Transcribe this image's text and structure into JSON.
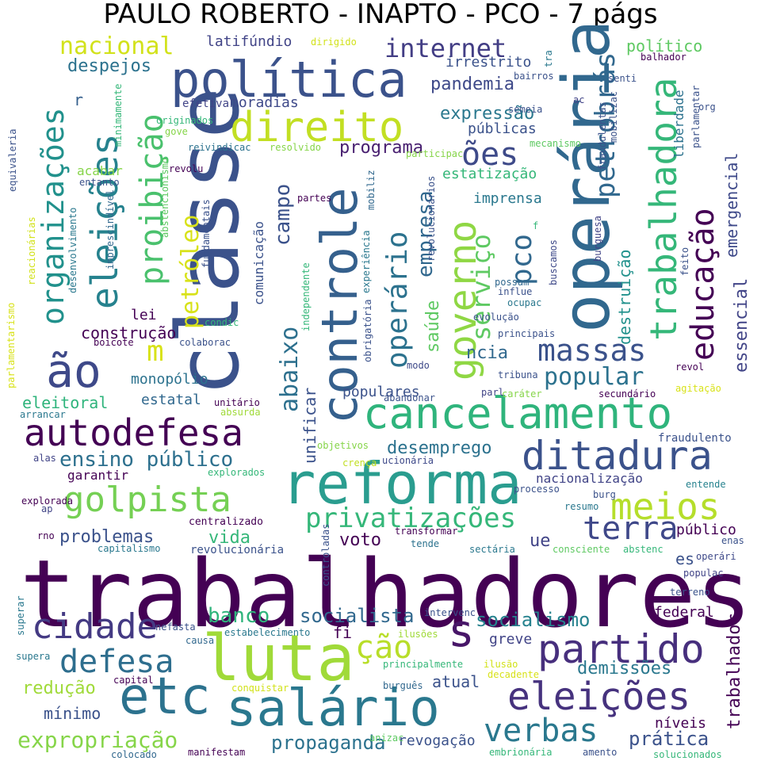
{
  "title": "PAULO ROBERTO - INAPTO - PCO - 7 págs",
  "words": [
    {
      "text": "trabalhadores",
      "color": "#440154"
    },
    {
      "text": "classe",
      "color": "#3b528b"
    },
    {
      "text": "luta",
      "color": "#a0da39"
    },
    {
      "text": "reforma",
      "color": "#2a9d8f"
    },
    {
      "text": "operária",
      "color": "#31688e"
    },
    {
      "text": "controle",
      "color": "#35608d"
    },
    {
      "text": "política",
      "color": "#3b528b"
    },
    {
      "text": "direito",
      "color": "#c2df23"
    },
    {
      "text": "etc",
      "color": "#2c728e"
    },
    {
      "text": "salário",
      "color": "#2a788e"
    },
    {
      "text": "cancelamento",
      "color": "#2fb47c"
    },
    {
      "text": "autodefesa",
      "color": "#440154"
    },
    {
      "text": "ditadura",
      "color": "#3b528b"
    },
    {
      "text": "governo",
      "color": "#8fd744"
    },
    {
      "text": "partido",
      "color": "#472f7d"
    },
    {
      "text": "golpista",
      "color": "#75d054"
    },
    {
      "text": "meios",
      "color": "#b5de2b"
    },
    {
      "text": "ão",
      "color": "#3e4989"
    },
    {
      "text": "s",
      "color": "#481668"
    },
    {
      "text": "eleições",
      "color": "#46327e"
    },
    {
      "text": "eleições",
      "color": "#26828e"
    },
    {
      "text": "organizações",
      "color": "#21918c"
    },
    {
      "text": "proibição",
      "color": "#4ac16d"
    },
    {
      "text": "trabalhadora",
      "color": "#35b779"
    },
    {
      "text": "educação",
      "color": "#440154"
    },
    {
      "text": "cidade",
      "color": "#443a83"
    },
    {
      "text": "defesa",
      "color": "#2e6e8e"
    },
    {
      "text": "verbas",
      "color": "#2a788e"
    },
    {
      "text": "terra",
      "color": "#3f4889"
    },
    {
      "text": "massas",
      "color": "#3b528b"
    },
    {
      "text": "privatizações",
      "color": "#35b779"
    },
    {
      "text": "ões",
      "color": "#3e4a89"
    },
    {
      "text": "operário",
      "color": "#2c728e"
    },
    {
      "text": "pco",
      "color": "#31688e"
    },
    {
      "text": "serviço",
      "color": "#5ec962"
    },
    {
      "text": "petrobrás",
      "color": "#31688e"
    },
    {
      "text": "internet",
      "color": "#433e85"
    },
    {
      "text": "nacional",
      "color": "#d2e21b"
    },
    {
      "text": "ção",
      "color": "#b8de29"
    },
    {
      "text": "abaixo",
      "color": "#2d708e"
    },
    {
      "text": "petróleo",
      "color": "#d8e219"
    },
    {
      "text": "m",
      "color": "#d8e219"
    },
    {
      "text": "campo",
      "color": "#3b528b"
    },
    {
      "text": "empresa",
      "color": "#31688e"
    },
    {
      "text": "popular",
      "color": "#2c728e"
    },
    {
      "text": "ensino público",
      "color": "#2d708e"
    },
    {
      "text": "problemas",
      "color": "#3b528b"
    },
    {
      "text": "expropriação",
      "color": "#86d549"
    },
    {
      "text": "banco",
      "color": "#2fb47c"
    },
    {
      "text": "socialista",
      "color": "#31688e"
    },
    {
      "text": "socialismo",
      "color": "#26828e"
    },
    {
      "text": "demissões",
      "color": "#2a788e"
    },
    {
      "text": "propaganda",
      "color": "#2c728e"
    },
    {
      "text": "prática",
      "color": "#3b528b"
    },
    {
      "text": "redução",
      "color": "#a0da39"
    },
    {
      "text": "mínimo",
      "color": "#3b528b"
    },
    {
      "text": "trabalhador",
      "color": "#440154"
    },
    {
      "text": "essencial",
      "color": "#414487"
    },
    {
      "text": "emergencial",
      "color": "#3e4989"
    },
    {
      "text": "destruição",
      "color": "#21918c"
    },
    {
      "text": "saúde",
      "color": "#5ec962"
    },
    {
      "text": "programa",
      "color": "#481f70"
    },
    {
      "text": "expressão",
      "color": "#2a788e"
    },
    {
      "text": "públicas",
      "color": "#3b528b"
    },
    {
      "text": "estatização",
      "color": "#35b779"
    },
    {
      "text": "pandemia",
      "color": "#3e4989"
    },
    {
      "text": "irrestrito",
      "color": "#3b528b"
    },
    {
      "text": "despejos",
      "color": "#2c728e"
    },
    {
      "text": "latifúndio",
      "color": "#414487"
    },
    {
      "text": "político",
      "color": "#5ec962"
    },
    {
      "text": "liberdade",
      "color": "#2c728e"
    },
    {
      "text": "moradias",
      "color": "#3e4989"
    },
    {
      "text": "lei",
      "color": "#440154"
    },
    {
      "text": "construção",
      "color": "#440154"
    },
    {
      "text": "monopólio",
      "color": "#2c728e"
    },
    {
      "text": "eleitoral",
      "color": "#2fb47c"
    },
    {
      "text": "estatal",
      "color": "#31688e"
    },
    {
      "text": "unificar",
      "color": "#3b528b"
    },
    {
      "text": "desemprego",
      "color": "#2c728e"
    },
    {
      "text": "vida",
      "color": "#35b779"
    },
    {
      "text": "voto",
      "color": "#440154"
    },
    {
      "text": "populares",
      "color": "#3b528b"
    },
    {
      "text": "nacionalização",
      "color": "#414487"
    },
    {
      "text": "federal",
      "color": "#440154"
    },
    {
      "text": "greve",
      "color": "#414487"
    },
    {
      "text": "atual",
      "color": "#3b528b"
    },
    {
      "text": "níveis",
      "color": "#440154"
    },
    {
      "text": "público",
      "color": "#440154"
    },
    {
      "text": "revogação",
      "color": "#3b528b"
    },
    {
      "text": "imprensa",
      "color": "#2a788e"
    },
    {
      "text": "ncia",
      "color": "#31688e"
    },
    {
      "text": "ue",
      "color": "#414487"
    },
    {
      "text": "fi",
      "color": "#440154"
    },
    {
      "text": "es",
      "color": "#3b528b"
    },
    {
      "text": "garantir",
      "color": "#440154"
    },
    {
      "text": "r",
      "color": "#35608d"
    },
    {
      "text": "acabar",
      "color": "#86d549"
    },
    {
      "text": "efetiva",
      "color": "#414487"
    },
    {
      "text": "comunicação",
      "color": "#3b528b"
    },
    {
      "text": "fraudulento",
      "color": "#3b528b"
    },
    {
      "text": "entende",
      "color": "#26828e"
    },
    {
      "text": "resumo",
      "color": "#2a788e"
    },
    {
      "text": "burg",
      "color": "#3b528b"
    },
    {
      "text": "processo",
      "color": "#3b528b"
    },
    {
      "text": "revolucionária",
      "color": "#3b528b"
    },
    {
      "text": "capitalismo",
      "color": "#2a788e"
    },
    {
      "text": "centralizado",
      "color": "#440154"
    },
    {
      "text": "transformar",
      "color": "#440154"
    },
    {
      "text": "tende",
      "color": "#2c728e"
    },
    {
      "text": "sectária",
      "color": "#2a788e"
    },
    {
      "text": "consciente",
      "color": "#5ec962"
    },
    {
      "text": "abstenc",
      "color": "#35b779"
    },
    {
      "text": "operári",
      "color": "#3e4989"
    },
    {
      "text": "populac",
      "color": "#414487"
    },
    {
      "text": "terreno",
      "color": "#3b528b"
    },
    {
      "text": "enas",
      "color": "#3b528b"
    },
    {
      "text": "intervenc",
      "color": "#3b528b"
    },
    {
      "text": "ilusões",
      "color": "#a0da39"
    },
    {
      "text": "estabelecimento",
      "color": "#2a788e"
    },
    {
      "text": "principalmente",
      "color": "#35b779"
    },
    {
      "text": "ilusão",
      "color": "#d2e21b"
    },
    {
      "text": "decadente",
      "color": "#d8e219"
    },
    {
      "text": "burguês",
      "color": "#31688e"
    },
    {
      "text": "conquistar",
      "color": "#d2e21b"
    },
    {
      "text": "capital",
      "color": "#440154"
    },
    {
      "text": "causa",
      "color": "#31688e"
    },
    {
      "text": "nefasta",
      "color": "#3b528b"
    },
    {
      "text": "superar",
      "color": "#2a788e"
    },
    {
      "text": "supera",
      "color": "#2a788e"
    },
    {
      "text": "colocado",
      "color": "#31688e"
    },
    {
      "text": "manifestam",
      "color": "#440154"
    },
    {
      "text": "anizac",
      "color": "#5ec962"
    },
    {
      "text": "embrionária",
      "color": "#35b779"
    },
    {
      "text": "amento",
      "color": "#3b528b"
    },
    {
      "text": "solucionados",
      "color": "#35b779"
    },
    {
      "text": "rno",
      "color": "#440154"
    },
    {
      "text": "ap",
      "color": "#414487"
    },
    {
      "text": "explorada",
      "color": "#440154"
    },
    {
      "text": "alas",
      "color": "#414487"
    },
    {
      "text": "arrancar",
      "color": "#2a788e"
    },
    {
      "text": "explorados",
      "color": "#35b779"
    },
    {
      "text": "crença",
      "color": "#c2df23"
    },
    {
      "text": "objetivos",
      "color": "#86d549"
    },
    {
      "text": "ucionária",
      "color": "#3e4989"
    },
    {
      "text": "absurda",
      "color": "#a0da39"
    },
    {
      "text": "unitário",
      "color": "#440154"
    },
    {
      "text": "abandonar",
      "color": "#3b528b"
    },
    {
      "text": "tribuna",
      "color": "#3b528b"
    },
    {
      "text": "caráter",
      "color": "#86d549"
    },
    {
      "text": "parl",
      "color": "#414487"
    },
    {
      "text": "secundário",
      "color": "#440154"
    },
    {
      "text": "agitação",
      "color": "#d8e219"
    },
    {
      "text": "revol",
      "color": "#440154"
    },
    {
      "text": "modo",
      "color": "#3e4989"
    },
    {
      "text": "colaborac",
      "color": "#3b528b"
    },
    {
      "text": "boicote",
      "color": "#440154"
    },
    {
      "text": "condic",
      "color": "#35b779"
    },
    {
      "text": "evolução",
      "color": "#3b528b"
    },
    {
      "text": "principais",
      "color": "#3b528b"
    },
    {
      "text": "ocupac",
      "color": "#2a788e"
    },
    {
      "text": "possam",
      "color": "#31688e"
    },
    {
      "text": "influe",
      "color": "#3b528b"
    },
    {
      "text": "feito",
      "color": "#3b528b"
    },
    {
      "text": "burguesa",
      "color": "#414487"
    },
    {
      "text": "buscamos",
      "color": "#3e4989"
    },
    {
      "text": "f",
      "color": "#35b779"
    },
    {
      "text": "partes",
      "color": "#440154"
    },
    {
      "text": "participac",
      "color": "#86d549"
    },
    {
      "text": "mecanismo",
      "color": "#5ec962"
    },
    {
      "text": "resolvido",
      "color": "#86d549"
    },
    {
      "text": "reivindicac",
      "color": "#2c728e"
    },
    {
      "text": "revolu",
      "color": "#440154"
    },
    {
      "text": "entanto",
      "color": "#3b528b"
    },
    {
      "text": "gove",
      "color": "#86d549"
    },
    {
      "text": "originados",
      "color": "#35b779"
    },
    {
      "text": "semeia",
      "color": "#3b528b"
    },
    {
      "text": "bairros",
      "color": "#3b528b"
    },
    {
      "text": "dirigido",
      "color": "#d2e21b"
    },
    {
      "text": "tra",
      "color": "#2a788e"
    },
    {
      "text": "balhador",
      "color": "#440154"
    },
    {
      "text": "senti",
      "color": "#3b528b"
    },
    {
      "text": "ac",
      "color": "#414487"
    },
    {
      "text": "org",
      "color": "#3b528b"
    },
    {
      "text": "mobilizac",
      "color": "#3b528b"
    },
    {
      "text": "parlamentar",
      "color": "#3b528b"
    },
    {
      "text": "fraudulentas",
      "color": "#3b528b"
    },
    {
      "text": "parlamentarismo",
      "color": "#d8e219"
    },
    {
      "text": "reacionárias",
      "color": "#d2e21b"
    },
    {
      "text": "equivaleria",
      "color": "#3b528b"
    },
    {
      "text": "desenvolvimento",
      "color": "#2a788e"
    },
    {
      "text": "imprescindível",
      "color": "#31688e"
    },
    {
      "text": "minimamente",
      "color": "#35b779"
    },
    {
      "text": "abstencionismo",
      "color": "#5ec962"
    },
    {
      "text": "fundamentais",
      "color": "#3b528b"
    },
    {
      "text": "independente",
      "color": "#35b779"
    },
    {
      "text": "experiência",
      "color": "#2a788e"
    },
    {
      "text": "mobiliz",
      "color": "#31688e"
    },
    {
      "text": "obrigatória",
      "color": "#3b528b"
    },
    {
      "text": "revolucionários",
      "color": "#3b528b"
    },
    {
      "text": "controladas",
      "color": "#3b528b"
    }
  ]
}
